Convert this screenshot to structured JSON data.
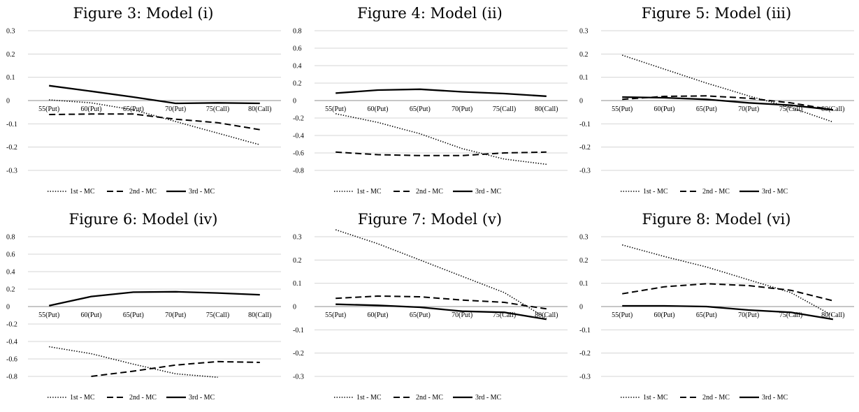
{
  "chart_data": [
    {
      "type": "line",
      "title": "Figure 3: Model (i)",
      "categories": [
        "55(Put)",
        "60(Put)",
        "65(Put)",
        "70(Put)",
        "75(Call)",
        "80(Call)"
      ],
      "ylim": [
        -0.3,
        0.3
      ],
      "yticks": [
        "0.3",
        "0.2",
        "0.1",
        "0",
        "-0.1",
        "-0.2",
        "-0.3"
      ],
      "grid": true,
      "legend": "bottom",
      "series": [
        {
          "name": "1st - MC",
          "style": "dotted",
          "values": [
            0.003,
            -0.01,
            -0.04,
            -0.09,
            -0.14,
            -0.19
          ]
        },
        {
          "name": "2nd - MC",
          "style": "dashed",
          "values": [
            -0.06,
            -0.058,
            -0.058,
            -0.08,
            -0.095,
            -0.125
          ]
        },
        {
          "name": "3rd - MC",
          "style": "solid",
          "values": [
            0.064,
            0.04,
            0.015,
            -0.012,
            -0.01,
            -0.012
          ]
        }
      ]
    },
    {
      "type": "line",
      "title": "Figure 4: Model (ii)",
      "categories": [
        "55(Put)",
        "60(Put)",
        "65(Put)",
        "70(Put)",
        "75(Call)",
        "80(Call)"
      ],
      "ylim": [
        -0.8,
        0.8
      ],
      "yticks": [
        "0.8",
        "0.6",
        "0.4",
        "0.2",
        "0",
        "-0.2",
        "-0.4",
        "-0.6",
        "-0.8"
      ],
      "grid": true,
      "legend": "bottom",
      "series": [
        {
          "name": "1st - MC",
          "style": "dotted",
          "values": [
            -0.15,
            -0.25,
            -0.38,
            -0.55,
            -0.67,
            -0.73
          ]
        },
        {
          "name": "2nd - MC",
          "style": "dashed",
          "values": [
            -0.59,
            -0.62,
            -0.63,
            -0.63,
            -0.6,
            -0.59
          ]
        },
        {
          "name": "3rd - MC",
          "style": "solid",
          "values": [
            0.085,
            0.12,
            0.13,
            0.1,
            0.08,
            0.05
          ]
        }
      ]
    },
    {
      "type": "line",
      "title": "Figure 5: Model (iii)",
      "categories": [
        "55(Put)",
        "60(Put)",
        "65(Put)",
        "70(Put)",
        "75(Call)",
        "80(Call)"
      ],
      "ylim": [
        -0.3,
        0.3
      ],
      "yticks": [
        "0.3",
        "0.2",
        "0.1",
        "0",
        "-0.1",
        "-0.2",
        "-0.3"
      ],
      "grid": true,
      "legend": "bottom",
      "series": [
        {
          "name": "1st - MC",
          "style": "dotted",
          "values": [
            0.195,
            0.135,
            0.075,
            0.02,
            -0.03,
            -0.092
          ]
        },
        {
          "name": "2nd - MC",
          "style": "dashed",
          "values": [
            0.005,
            0.018,
            0.02,
            0.01,
            -0.01,
            -0.04
          ]
        },
        {
          "name": "3rd - MC",
          "style": "solid",
          "values": [
            0.015,
            0.012,
            0.005,
            -0.01,
            -0.02,
            -0.04
          ]
        }
      ]
    },
    {
      "type": "line",
      "title": "Figure 6: Model (iv)",
      "categories": [
        "55(Put)",
        "60(Put)",
        "65(Put)",
        "70(Put)",
        "75(Call)",
        "80(Call)"
      ],
      "ylim": [
        -0.8,
        0.8
      ],
      "yticks": [
        "0.8",
        "0.6",
        "0.4",
        "0.2",
        "0",
        "-0.2",
        "-0.4",
        "-0.6",
        "-0.8"
      ],
      "grid": true,
      "legend": "bottom",
      "series": [
        {
          "name": "1st - MC",
          "style": "dotted",
          "values": [
            -0.46,
            -0.54,
            -0.66,
            -0.77,
            -0.81,
            null
          ]
        },
        {
          "name": "2nd - MC",
          "style": "dashed",
          "values": [
            null,
            -0.8,
            -0.74,
            -0.67,
            -0.63,
            -0.64
          ]
        },
        {
          "name": "3rd - MC",
          "style": "solid",
          "values": [
            0.01,
            0.115,
            0.165,
            0.17,
            0.155,
            0.135
          ]
        }
      ]
    },
    {
      "type": "line",
      "title": "Figure 7: Model (v)",
      "categories": [
        "55(Put)",
        "60(Put)",
        "65(Put)",
        "70(Put)",
        "75(Call)",
        "80(Call)"
      ],
      "ylim": [
        -0.3,
        0.3
      ],
      "yticks": [
        "0.3",
        "0.2",
        "0.1",
        "0",
        "-0.1",
        "-0.2",
        "-0.3"
      ],
      "grid": true,
      "legend": "bottom",
      "series": [
        {
          "name": "1st - MC",
          "style": "dotted",
          "values": [
            0.33,
            0.27,
            0.2,
            0.13,
            0.06,
            -0.05
          ]
        },
        {
          "name": "2nd - MC",
          "style": "dashed",
          "values": [
            0.035,
            0.045,
            0.042,
            0.028,
            0.018,
            -0.01
          ]
        },
        {
          "name": "3rd - MC",
          "style": "solid",
          "values": [
            0.01,
            0.005,
            -0.003,
            -0.02,
            -0.025,
            -0.055
          ]
        }
      ]
    },
    {
      "type": "line",
      "title": "Figure 8: Model (vi)",
      "categories": [
        "55(Put)",
        "60(Put)",
        "65(Put)",
        "70(Put)",
        "75(Call)",
        "80(Call)"
      ],
      "ylim": [
        -0.3,
        0.3
      ],
      "yticks": [
        "0.3",
        "0.2",
        "0.1",
        "0",
        "-0.1",
        "-0.2",
        "-0.3"
      ],
      "grid": true,
      "legend": "bottom",
      "series": [
        {
          "name": "1st - MC",
          "style": "dotted",
          "values": [
            0.265,
            0.215,
            0.17,
            0.115,
            0.06,
            -0.04
          ]
        },
        {
          "name": "2nd - MC",
          "style": "dashed",
          "values": [
            0.055,
            0.085,
            0.098,
            0.09,
            0.07,
            0.025
          ]
        },
        {
          "name": "3rd - MC",
          "style": "solid",
          "values": [
            0.003,
            0.003,
            0.0,
            -0.015,
            -0.025,
            -0.055
          ]
        }
      ]
    }
  ]
}
